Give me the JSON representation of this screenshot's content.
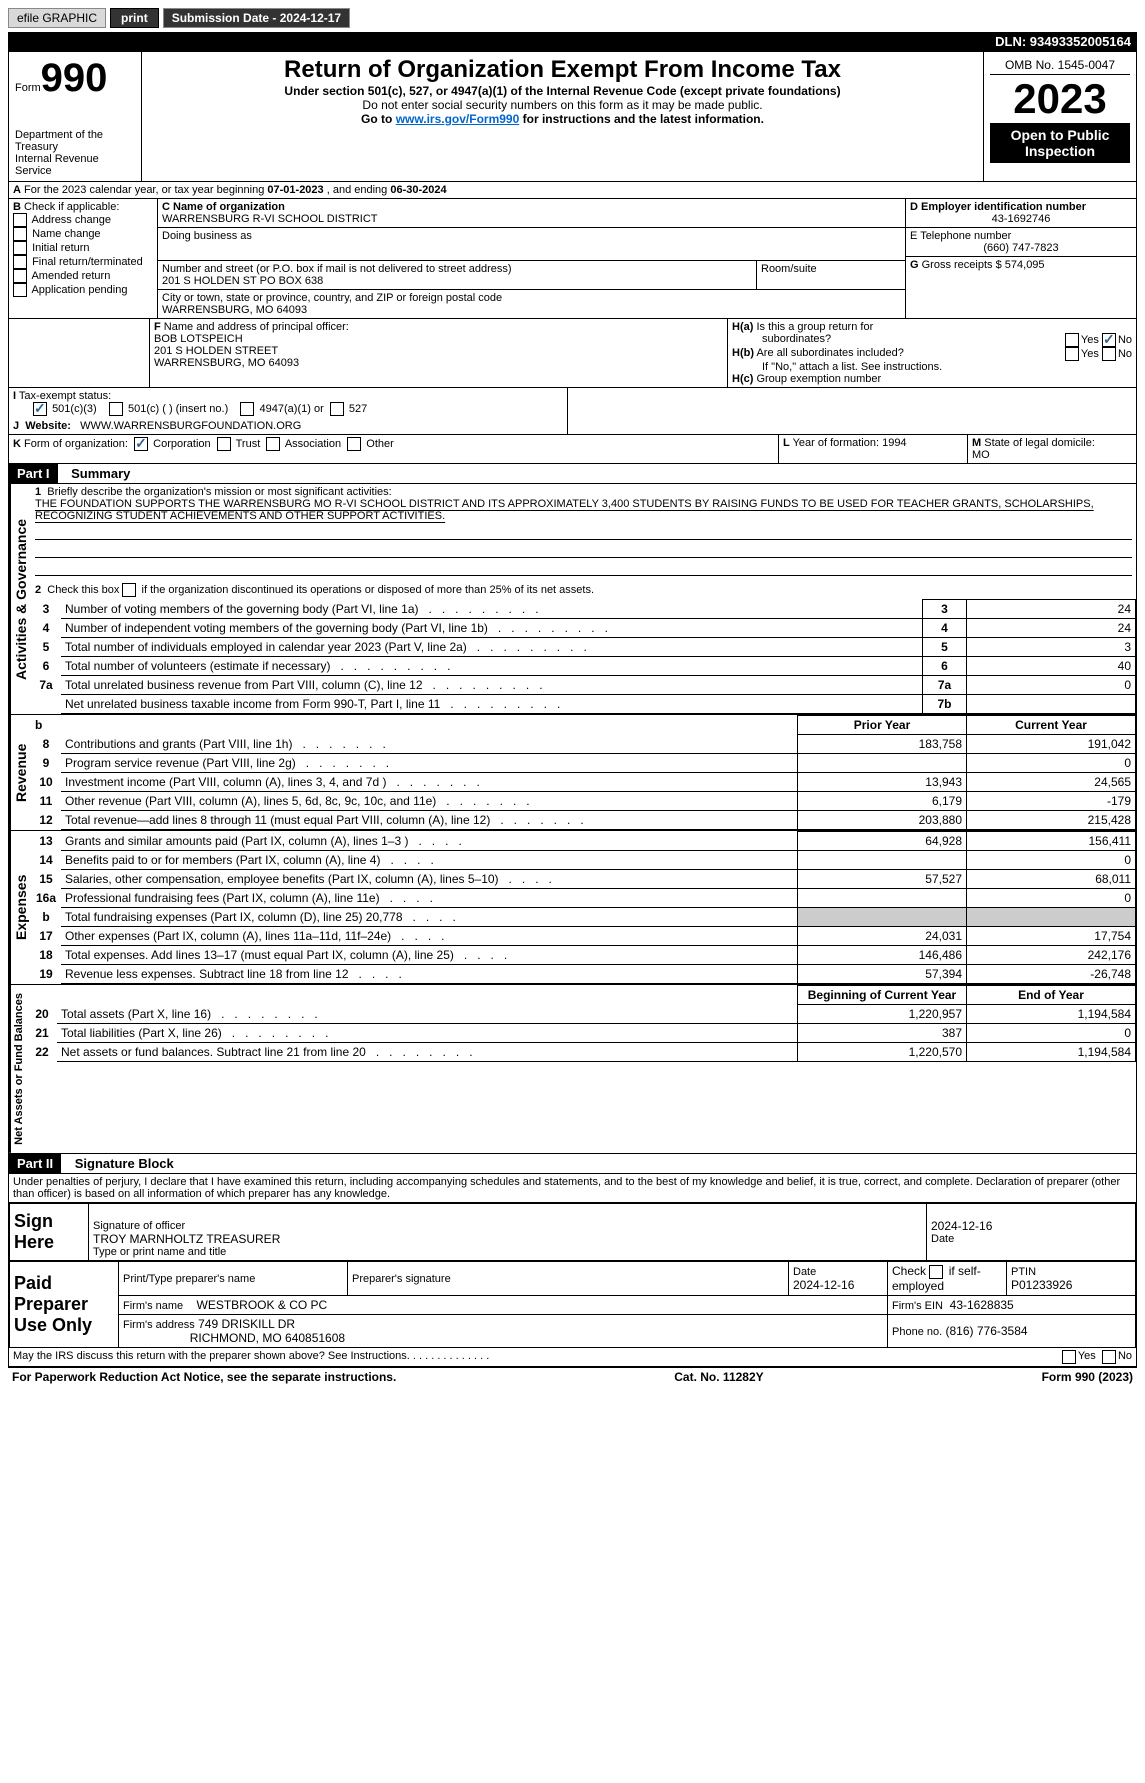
{
  "toolbar": {
    "efile_label": "efile GRAPHIC",
    "print_label": "print",
    "submission_label": "Submission Date - 2024-12-17",
    "dln": "DLN: 93493352005164"
  },
  "header": {
    "form_label": "Form",
    "form_number": "990",
    "title": "Return of Organization Exempt From Income Tax",
    "subtitle1": "Under section 501(c), 527, or 4947(a)(1) of the Internal Revenue Code (except private foundations)",
    "subtitle2": "Do not enter social security numbers on this form as it may be made public.",
    "subtitle3_prefix": "Go to ",
    "subtitle3_link": "www.irs.gov/Form990",
    "subtitle3_suffix": " for instructions and the latest information.",
    "dept": "Department of the Treasury",
    "irs": "Internal Revenue Service",
    "omb": "OMB No. 1545-0047",
    "year": "2023",
    "open_inspect1": "Open to Public",
    "open_inspect2": "Inspection"
  },
  "line_a": {
    "prefix": "A",
    "text": "For the 2023 calendar year, or tax year beginning ",
    "begin": "07-01-2023",
    "mid": " , and ending ",
    "end": "06-30-2024"
  },
  "box_b": {
    "label": "B",
    "sub": "Check if applicable:",
    "opts": [
      "Address change",
      "Name change",
      "Initial return",
      "Final return/terminated",
      "Amended return",
      "Application pending"
    ]
  },
  "box_c": {
    "name_label": "C Name of organization",
    "name": "WARRENSBURG R-VI SCHOOL DISTRICT",
    "dba_label": "Doing business as",
    "street_label": "Number and street (or P.O. box if mail is not delivered to street address)",
    "street": "201 S HOLDEN ST PO BOX 638",
    "room_label": "Room/suite",
    "city_label": "City or town, state or province, country, and ZIP or foreign postal code",
    "city": "WARRENSBURG, MO  64093"
  },
  "box_d": {
    "label": "D Employer identification number",
    "value": "43-1692746"
  },
  "box_e": {
    "label": "E Telephone number",
    "value": "(660) 747-7823"
  },
  "box_g": {
    "label": "G",
    "text": "Gross receipts $",
    "value": "574,095"
  },
  "box_f": {
    "label": "F",
    "sub": "Name and address of principal officer:",
    "name": "BOB LOTSPEICH",
    "addr1": "201 S HOLDEN STREET",
    "addr2": "WARRENSBURG, MO  64093"
  },
  "box_h": {
    "ha_label": "H(a)",
    "ha_text": "Is this a group return for",
    "ha_text2": "subordinates?",
    "hb_label": "H(b)",
    "hb_text": "Are all subordinates included?",
    "hb_note": "If \"No,\" attach a list. See instructions.",
    "hc_label": "H(c)",
    "hc_text": "Group exemption number",
    "yes": "Yes",
    "no": "No"
  },
  "box_i": {
    "label": "I",
    "text": "Tax-exempt status:",
    "opt1": "501(c)(3)",
    "opt2": "501(c) (   ) (insert no.)",
    "opt3": "4947(a)(1) or",
    "opt4": "527"
  },
  "box_j": {
    "label": "J",
    "text": "Website:",
    "value": "WWW.WARRENSBURGFOUNDATION.ORG"
  },
  "box_k": {
    "label": "K",
    "text": "Form of organization:",
    "opt1": "Corporation",
    "opt2": "Trust",
    "opt3": "Association",
    "opt4": "Other"
  },
  "box_l": {
    "label": "L",
    "text": "Year of formation:",
    "value": "1994"
  },
  "box_m": {
    "label": "M",
    "text": "State of legal domicile:",
    "value": "MO"
  },
  "part1": {
    "label": "Part I",
    "title": "Summary",
    "side1": "Activities & Governance",
    "side2": "Revenue",
    "side3": "Expenses",
    "side4": "Net Assets or Fund Balances",
    "line1_label": "1",
    "line1_text": "Briefly describe the organization's mission or most significant activities:",
    "mission": "THE FOUNDATION SUPPORTS THE WARRENSBURG MO R-VI SCHOOL DISTRICT AND ITS APPROXIMATELY 3,400 STUDENTS BY RAISING FUNDS TO BE USED FOR TEACHER GRANTS, SCHOLARSHIPS, RECOGNIZING STUDENT ACHIEVEMENTS AND OTHER SUPPORT ACTIVITIES.",
    "line2_label": "2",
    "line2_text": "Check this box",
    "line2_suffix": "if the organization discontinued its operations or disposed of more than 25% of its net assets.",
    "lines": [
      {
        "num": "3",
        "text": "Number of voting members of the governing body (Part VI, line 1a)",
        "col": "3",
        "val": "24"
      },
      {
        "num": "4",
        "text": "Number of independent voting members of the governing body (Part VI, line 1b)",
        "col": "4",
        "val": "24"
      },
      {
        "num": "5",
        "text": "Total number of individuals employed in calendar year 2023 (Part V, line 2a)",
        "col": "5",
        "val": "3"
      },
      {
        "num": "6",
        "text": "Total number of volunteers (estimate if necessary)",
        "col": "6",
        "val": "40"
      },
      {
        "num": "7a",
        "text": "Total unrelated business revenue from Part VIII, column (C), line 12",
        "col": "7a",
        "val": "0"
      },
      {
        "num": "",
        "text": "Net unrelated business taxable income from Form 990-T, Part I, line 11",
        "col": "7b",
        "val": ""
      }
    ],
    "py_header": "Prior Year",
    "cy_header": "Current Year",
    "rev_lines": [
      {
        "num": "8",
        "text": "Contributions and grants (Part VIII, line 1h)",
        "py": "183,758",
        "cy": "191,042"
      },
      {
        "num": "9",
        "text": "Program service revenue (Part VIII, line 2g)",
        "py": "",
        "cy": "0"
      },
      {
        "num": "10",
        "text": "Investment income (Part VIII, column (A), lines 3, 4, and 7d )",
        "py": "13,943",
        "cy": "24,565"
      },
      {
        "num": "11",
        "text": "Other revenue (Part VIII, column (A), lines 5, 6d, 8c, 9c, 10c, and 11e)",
        "py": "6,179",
        "cy": "-179"
      },
      {
        "num": "12",
        "text": "Total revenue—add lines 8 through 11 (must equal Part VIII, column (A), line 12)",
        "py": "203,880",
        "cy": "215,428"
      }
    ],
    "exp_lines": [
      {
        "num": "13",
        "text": "Grants and similar amounts paid (Part IX, column (A), lines 1–3 )",
        "py": "64,928",
        "cy": "156,411"
      },
      {
        "num": "14",
        "text": "Benefits paid to or for members (Part IX, column (A), line 4)",
        "py": "",
        "cy": "0"
      },
      {
        "num": "15",
        "text": "Salaries, other compensation, employee benefits (Part IX, column (A), lines 5–10)",
        "py": "57,527",
        "cy": "68,011"
      },
      {
        "num": "16a",
        "text": "Professional fundraising fees (Part IX, column (A), line 11e)",
        "py": "",
        "cy": "0"
      },
      {
        "num": "b",
        "text": "Total fundraising expenses (Part IX, column (D), line 25) 20,778",
        "py": "gray",
        "cy": "gray"
      },
      {
        "num": "17",
        "text": "Other expenses (Part IX, column (A), lines 11a–11d, 11f–24e)",
        "py": "24,031",
        "cy": "17,754"
      },
      {
        "num": "18",
        "text": "Total expenses. Add lines 13–17 (must equal Part IX, column (A), line 25)",
        "py": "146,486",
        "cy": "242,176"
      },
      {
        "num": "19",
        "text": "Revenue less expenses. Subtract line 18 from line 12",
        "py": "57,394",
        "cy": "-26,748"
      }
    ],
    "bcy_header": "Beginning of Current Year",
    "eoy_header": "End of Year",
    "net_lines": [
      {
        "num": "20",
        "text": "Total assets (Part X, line 16)",
        "py": "1,220,957",
        "cy": "1,194,584"
      },
      {
        "num": "21",
        "text": "Total liabilities (Part X, line 26)",
        "py": "387",
        "cy": "0"
      },
      {
        "num": "22",
        "text": "Net assets or fund balances. Subtract line 21 from line 20",
        "py": "1,220,570",
        "cy": "1,194,584"
      }
    ]
  },
  "part2": {
    "label": "Part II",
    "title": "Signature Block",
    "decl": "Under penalties of perjury, I declare that I have examined this return, including accompanying schedules and statements, and to the best of my knowledge and belief, it is true, correct, and complete. Declaration of preparer (other than officer) is based on all information of which preparer has any knowledge.",
    "sign_here": "Sign Here",
    "sig_label": "Signature of officer",
    "officer": "TROY MARNHOLTZ  TREASURER",
    "type_label": "Type or print name and title",
    "date_label": "Date",
    "date_val": "2024-12-16",
    "paid": "Paid Preparer Use Only",
    "prep_name_label": "Print/Type preparer's name",
    "prep_sig_label": "Preparer's signature",
    "prep_date": "2024-12-16",
    "check_label": "Check",
    "self_emp": "if self-employed",
    "ptin_label": "PTIN",
    "ptin": "P01233926",
    "firm_name_label": "Firm's name",
    "firm_name": "WESTBROOK & CO PC",
    "firm_ein_label": "Firm's EIN",
    "firm_ein": "43-1628835",
    "firm_addr_label": "Firm's address",
    "firm_addr1": "749 DRISKILL DR",
    "firm_addr2": "RICHMOND, MO  640851608",
    "phone_label": "Phone no.",
    "phone": "(816) 776-3584",
    "discuss": "May the IRS discuss this return with the preparer shown above? See Instructions."
  },
  "footer": {
    "left": "For Paperwork Reduction Act Notice, see the separate instructions.",
    "mid": "Cat. No. 11282Y",
    "right": "Form 990 (2023)"
  }
}
